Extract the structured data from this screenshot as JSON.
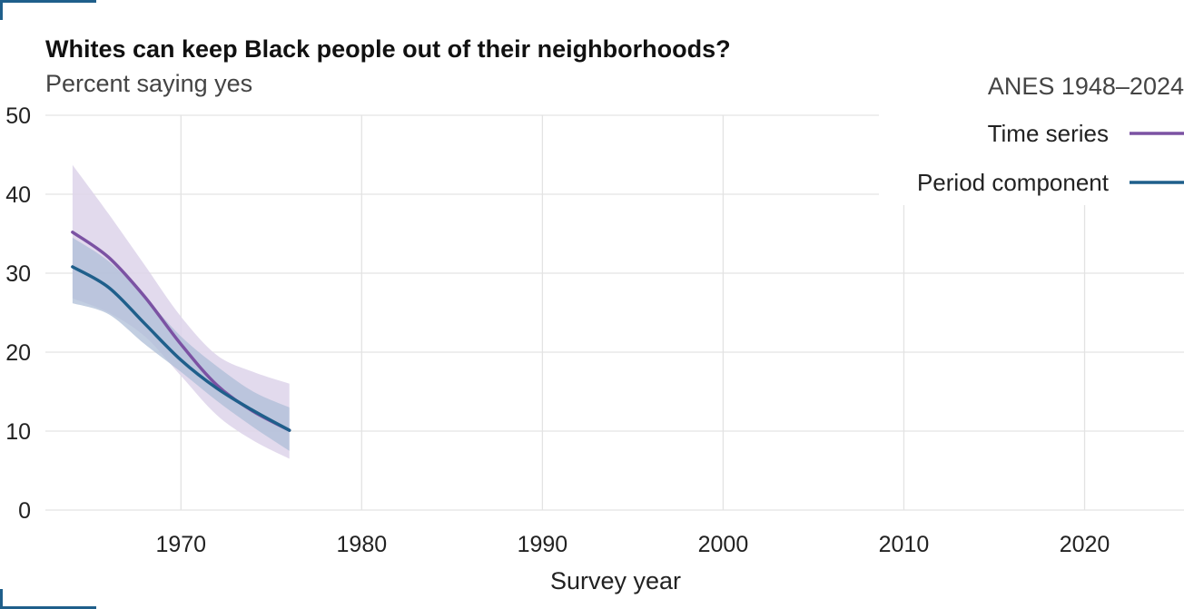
{
  "chart_data": {
    "type": "line",
    "title": "Whites can keep Black people out of their neighborhoods?",
    "subtitle": "Percent saying yes",
    "source_note": "ANES 1948–2024",
    "xlabel": "Survey year",
    "ylabel": "",
    "xlim": [
      1962.5,
      2025.5
    ],
    "ylim": [
      0,
      50
    ],
    "x_ticks": [
      1970,
      1980,
      1990,
      2000,
      2010,
      2020
    ],
    "y_ticks": [
      0,
      10,
      20,
      30,
      40,
      50
    ],
    "grid": true,
    "legend_position": "top-right",
    "series": [
      {
        "name": "Time series",
        "color": "#7b52a3",
        "band_color": "#ddd3ea",
        "x": [
          1964,
          1966,
          1968,
          1970,
          1972,
          1974,
          1976
        ],
        "values": [
          35.2,
          32.0,
          27.0,
          21.0,
          15.8,
          12.5,
          10.1
        ],
        "lower": [
          26.8,
          25.0,
          22.0,
          17.0,
          12.0,
          8.8,
          6.5
        ],
        "upper": [
          43.7,
          37.5,
          31.0,
          24.5,
          19.6,
          17.5,
          16.0
        ]
      },
      {
        "name": "Period component",
        "color": "#1f5f8b",
        "band_color": "#aebdd7",
        "x": [
          1964,
          1966,
          1968,
          1970,
          1972,
          1974,
          1976
        ],
        "values": [
          30.8,
          28.2,
          23.6,
          19.0,
          15.4,
          12.6,
          10.1
        ],
        "lower": [
          26.2,
          24.8,
          21.0,
          17.5,
          13.8,
          10.5,
          7.5
        ],
        "upper": [
          34.5,
          31.5,
          27.0,
          22.0,
          18.2,
          15.0,
          13.0
        ]
      }
    ]
  }
}
